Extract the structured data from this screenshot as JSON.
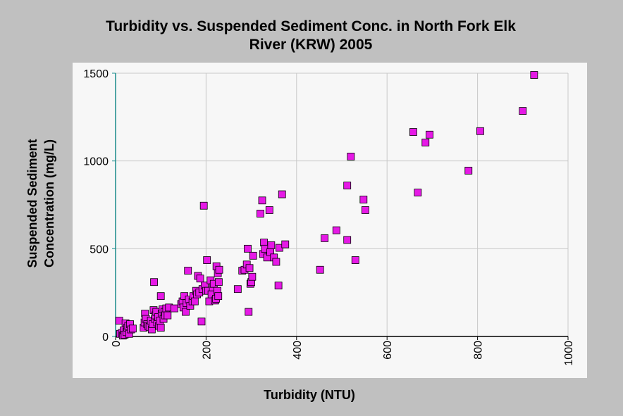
{
  "chart_data": {
    "type": "scatter",
    "title_lines": [
      "Turbidity vs. Suspended Sediment Conc. in North Fork Elk",
      "River (KRW) 2005"
    ],
    "xlabel": "Turbidity (NTU)",
    "ylabel_lines": [
      "Suspended Sediment",
      "Concentration (mg/L)"
    ],
    "xlim": [
      0,
      1000
    ],
    "ylim": [
      0,
      1500
    ],
    "xticks": [
      0,
      200,
      400,
      600,
      800,
      1000
    ],
    "yticks": [
      0,
      500,
      1000,
      1500
    ],
    "grid": true,
    "legend": "none",
    "colors": {
      "marker_fill": "#e619e6",
      "marker_edge": "#000000",
      "grid": "#c8c8c8",
      "axis": "#1a8c8c",
      "plot_bg": "#f7f7f7",
      "page_bg": "#c0c0c0"
    },
    "points": [
      [
        8,
        90
      ],
      [
        10,
        15
      ],
      [
        14,
        20
      ],
      [
        16,
        5
      ],
      [
        18,
        35
      ],
      [
        20,
        10
      ],
      [
        22,
        75
      ],
      [
        24,
        25
      ],
      [
        26,
        50
      ],
      [
        28,
        60
      ],
      [
        30,
        15
      ],
      [
        32,
        70
      ],
      [
        34,
        40
      ],
      [
        38,
        45
      ],
      [
        62,
        50
      ],
      [
        64,
        80
      ],
      [
        65,
        130
      ],
      [
        67,
        100
      ],
      [
        70,
        70
      ],
      [
        72,
        60
      ],
      [
        75,
        55
      ],
      [
        78,
        90
      ],
      [
        80,
        40
      ],
      [
        82,
        70
      ],
      [
        84,
        150
      ],
      [
        85,
        310
      ],
      [
        87,
        100
      ],
      [
        88,
        120
      ],
      [
        90,
        140
      ],
      [
        92,
        80
      ],
      [
        94,
        110
      ],
      [
        96,
        60
      ],
      [
        98,
        90
      ],
      [
        100,
        230
      ],
      [
        100,
        50
      ],
      [
        102,
        130
      ],
      [
        104,
        155
      ],
      [
        106,
        100
      ],
      [
        108,
        140
      ],
      [
        110,
        120
      ],
      [
        112,
        160
      ],
      [
        115,
        120
      ],
      [
        118,
        165
      ],
      [
        130,
        160
      ],
      [
        145,
        185
      ],
      [
        148,
        200
      ],
      [
        150,
        165
      ],
      [
        152,
        230
      ],
      [
        155,
        140
      ],
      [
        157,
        190
      ],
      [
        160,
        375
      ],
      [
        162,
        210
      ],
      [
        165,
        175
      ],
      [
        170,
        200
      ],
      [
        172,
        230
      ],
      [
        175,
        200
      ],
      [
        178,
        260
      ],
      [
        180,
        240
      ],
      [
        182,
        345
      ],
      [
        185,
        250
      ],
      [
        187,
        330
      ],
      [
        190,
        85
      ],
      [
        192,
        270
      ],
      [
        195,
        745
      ],
      [
        197,
        290
      ],
      [
        200,
        260
      ],
      [
        202,
        435
      ],
      [
        205,
        260
      ],
      [
        207,
        200
      ],
      [
        210,
        320
      ],
      [
        212,
        240
      ],
      [
        215,
        280
      ],
      [
        217,
        300
      ],
      [
        220,
        205
      ],
      [
        222,
        215
      ],
      [
        223,
        400
      ],
      [
        225,
        260
      ],
      [
        226,
        360
      ],
      [
        227,
        230
      ],
      [
        228,
        310
      ],
      [
        229,
        380
      ],
      [
        270,
        270
      ],
      [
        280,
        375
      ],
      [
        285,
        380
      ],
      [
        290,
        410
      ],
      [
        292,
        500
      ],
      [
        294,
        140
      ],
      [
        296,
        390
      ],
      [
        298,
        300
      ],
      [
        300,
        310
      ],
      [
        302,
        340
      ],
      [
        304,
        460
      ],
      [
        320,
        700
      ],
      [
        324,
        775
      ],
      [
        326,
        470
      ],
      [
        328,
        535
      ],
      [
        330,
        500
      ],
      [
        335,
        450
      ],
      [
        340,
        720
      ],
      [
        342,
        480
      ],
      [
        344,
        520
      ],
      [
        350,
        450
      ],
      [
        355,
        425
      ],
      [
        360,
        290
      ],
      [
        362,
        505
      ],
      [
        368,
        810
      ],
      [
        375,
        525
      ],
      [
        452,
        380
      ],
      [
        462,
        560
      ],
      [
        488,
        605
      ],
      [
        512,
        860
      ],
      [
        512,
        550
      ],
      [
        520,
        1025
      ],
      [
        530,
        435
      ],
      [
        548,
        780
      ],
      [
        552,
        720
      ],
      [
        658,
        1165
      ],
      [
        668,
        820
      ],
      [
        685,
        1105
      ],
      [
        694,
        1150
      ],
      [
        780,
        945
      ],
      [
        806,
        1170
      ],
      [
        900,
        1285
      ],
      [
        925,
        1490
      ]
    ]
  }
}
